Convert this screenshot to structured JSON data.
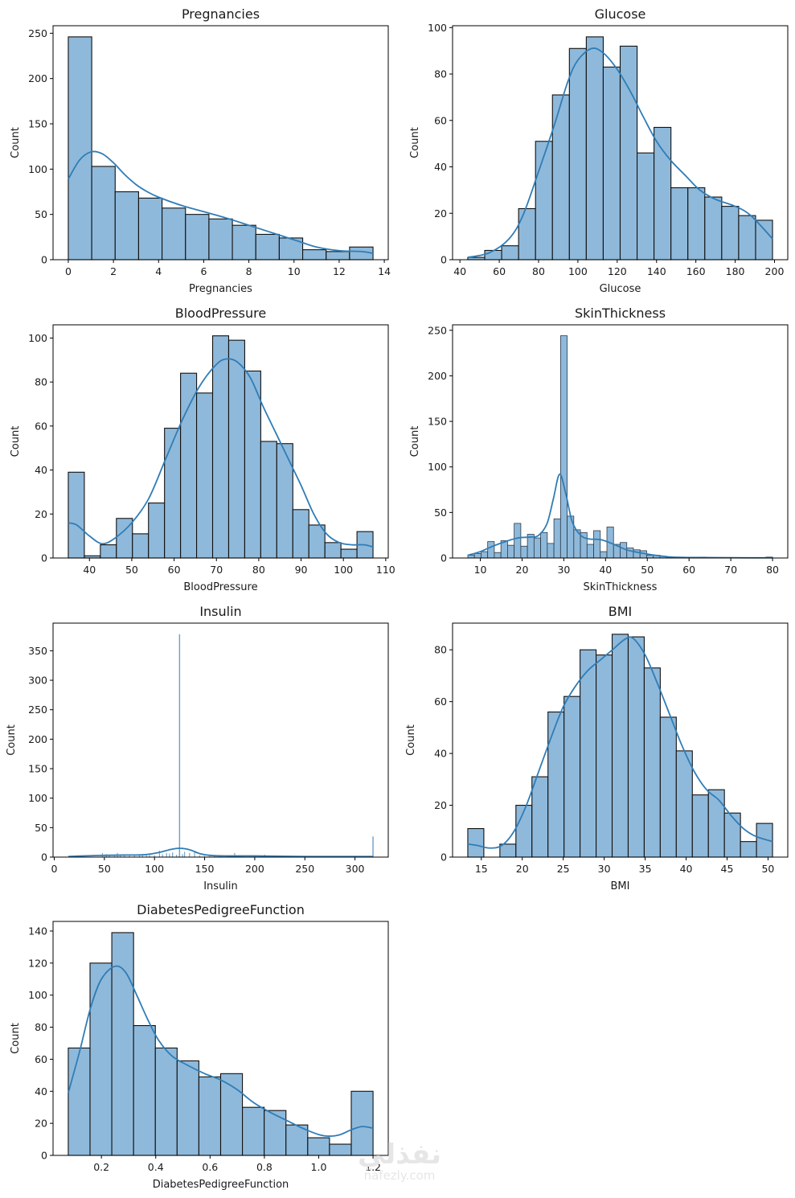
{
  "figure": {
    "watermark": {
      "arabic": "نفذلي",
      "latin": "nafezly.com"
    }
  },
  "chart_data": [
    {
      "type": "bar",
      "title": "Pregnancies",
      "xlabel": "Pregnancies",
      "ylabel": "Count",
      "bin_edges_range": [
        0,
        13.5
      ],
      "values": [
        246,
        103,
        75,
        68,
        57,
        50,
        45,
        38,
        28,
        24,
        11,
        9,
        14
      ],
      "xticks": [
        0,
        2,
        4,
        6,
        8,
        10,
        12,
        14
      ],
      "yticks": [
        0,
        50,
        100,
        150,
        200,
        250
      ],
      "xlim": [
        -0.675,
        14.175
      ],
      "ylim": [
        0,
        258.3
      ],
      "kde": [
        [
          0,
          89
        ],
        [
          0.5,
          110
        ],
        [
          1,
          119
        ],
        [
          1.5,
          117
        ],
        [
          2,
          107
        ],
        [
          2.5,
          94
        ],
        [
          3,
          83
        ],
        [
          3.5,
          75
        ],
        [
          4,
          69
        ],
        [
          5,
          60
        ],
        [
          6,
          53
        ],
        [
          7,
          46
        ],
        [
          8,
          38
        ],
        [
          9,
          30
        ],
        [
          10,
          22
        ],
        [
          11,
          14
        ],
        [
          12,
          10
        ],
        [
          13,
          9
        ],
        [
          13.5,
          7
        ]
      ]
    },
    {
      "type": "bar",
      "title": "Glucose",
      "xlabel": "Glucose",
      "ylabel": "Count",
      "bin_edges_range": [
        44,
        199
      ],
      "values": [
        1,
        4,
        6,
        22,
        51,
        71,
        91,
        96,
        83,
        92,
        46,
        57,
        31,
        31,
        27,
        23,
        19,
        17
      ],
      "xticks": [
        40,
        60,
        80,
        100,
        120,
        140,
        160,
        180,
        200
      ],
      "yticks": [
        0,
        20,
        40,
        60,
        80,
        100
      ],
      "xlim": [
        36.25,
        206.75
      ],
      "ylim": [
        0,
        100.8
      ],
      "kde": [
        [
          44,
          1
        ],
        [
          55,
          3
        ],
        [
          65,
          9
        ],
        [
          72,
          19
        ],
        [
          80,
          38
        ],
        [
          88,
          58
        ],
        [
          95,
          77
        ],
        [
          100,
          86
        ],
        [
          107,
          91
        ],
        [
          113,
          89
        ],
        [
          120,
          82
        ],
        [
          127,
          72
        ],
        [
          133,
          62
        ],
        [
          140,
          51
        ],
        [
          147,
          43
        ],
        [
          155,
          36
        ],
        [
          162,
          30
        ],
        [
          170,
          26
        ],
        [
          180,
          23
        ],
        [
          188,
          19
        ],
        [
          199,
          9
        ]
      ]
    },
    {
      "type": "bar",
      "title": "BloodPressure",
      "xlabel": "BloodPressure",
      "ylabel": "Count",
      "bin_edges_range": [
        35,
        107
      ],
      "values": [
        39,
        1,
        6,
        18,
        11,
        25,
        59,
        84,
        75,
        101,
        99,
        85,
        53,
        52,
        22,
        15,
        7,
        4,
        12
      ],
      "xticks": [
        40,
        50,
        60,
        70,
        80,
        90,
        100,
        110
      ],
      "yticks": [
        0,
        20,
        40,
        60,
        80,
        100
      ],
      "xlim": [
        31.4,
        110.6
      ],
      "ylim": [
        0,
        106
      ],
      "kde": [
        [
          35,
          16
        ],
        [
          37,
          15
        ],
        [
          40,
          10
        ],
        [
          43,
          6.5
        ],
        [
          46,
          9
        ],
        [
          50,
          16
        ],
        [
          54,
          27
        ],
        [
          58,
          45
        ],
        [
          62,
          63
        ],
        [
          66,
          78
        ],
        [
          70,
          88
        ],
        [
          72.5,
          90.5
        ],
        [
          75,
          89
        ],
        [
          78,
          82
        ],
        [
          81,
          69
        ],
        [
          84,
          57
        ],
        [
          87,
          45
        ],
        [
          90,
          33
        ],
        [
          93,
          20
        ],
        [
          96,
          11
        ],
        [
          99,
          7
        ],
        [
          102,
          6
        ],
        [
          105,
          6
        ],
        [
          107,
          5
        ]
      ]
    },
    {
      "type": "bar",
      "title": "SkinThickness",
      "xlabel": "SkinThickness",
      "ylabel": "Count",
      "bin_edges_range": [
        7,
        80
      ],
      "values": [
        3,
        5,
        7,
        18,
        6,
        19,
        14,
        38,
        13,
        26,
        22,
        28,
        16,
        43,
        244,
        46,
        31,
        28,
        15,
        30,
        7,
        34,
        15,
        17,
        11,
        9,
        8,
        3,
        3,
        2,
        1,
        1,
        1,
        0,
        0,
        1,
        0,
        0,
        0,
        0,
        0,
        0,
        0,
        0,
        0,
        1
      ],
      "xticks": [
        10,
        20,
        30,
        40,
        50,
        60,
        70,
        80
      ],
      "yticks": [
        0,
        50,
        100,
        150,
        200,
        250
      ],
      "xlim": [
        3.35,
        83.65
      ],
      "ylim": [
        0,
        256
      ],
      "kde": [
        [
          7,
          3
        ],
        [
          10,
          7
        ],
        [
          13,
          13
        ],
        [
          16,
          18
        ],
        [
          19,
          22
        ],
        [
          22,
          23
        ],
        [
          24,
          25
        ],
        [
          26,
          38
        ],
        [
          27.5,
          65
        ],
        [
          29,
          92
        ],
        [
          30.5,
          70
        ],
        [
          32,
          40
        ],
        [
          34,
          25
        ],
        [
          36,
          21
        ],
        [
          39,
          20
        ],
        [
          42,
          15
        ],
        [
          45,
          9
        ],
        [
          48,
          6
        ],
        [
          52,
          3
        ],
        [
          56,
          1
        ],
        [
          62,
          0.5
        ],
        [
          70,
          0.3
        ],
        [
          80,
          0.2
        ]
      ]
    },
    {
      "type": "bar",
      "title": "Insulin",
      "xlabel": "Insulin",
      "ylabel": "Count",
      "bin_edges_range": [
        14,
        318
      ],
      "spikes": [
        {
          "x": 125,
          "value": 378
        },
        {
          "x": 318,
          "value": 35
        }
      ],
      "minor_bars": [
        [
          48,
          7
        ],
        [
          52,
          5
        ],
        [
          55,
          4
        ],
        [
          60,
          3
        ],
        [
          63,
          7
        ],
        [
          66,
          4
        ],
        [
          70,
          3
        ],
        [
          75,
          4
        ],
        [
          80,
          3
        ],
        [
          85,
          3
        ],
        [
          88,
          4
        ],
        [
          92,
          5
        ],
        [
          95,
          6
        ],
        [
          100,
          3
        ],
        [
          105,
          11
        ],
        [
          108,
          5
        ],
        [
          112,
          7
        ],
        [
          115,
          6
        ],
        [
          118,
          8
        ],
        [
          122,
          4
        ],
        [
          128,
          5
        ],
        [
          130,
          9
        ],
        [
          135,
          7
        ],
        [
          140,
          8
        ],
        [
          145,
          3
        ],
        [
          150,
          2
        ],
        [
          155,
          2
        ],
        [
          160,
          2
        ],
        [
          165,
          2
        ],
        [
          175,
          2
        ],
        [
          180,
          7
        ],
        [
          185,
          3
        ],
        [
          190,
          3
        ],
        [
          195,
          2
        ],
        [
          200,
          2
        ],
        [
          210,
          4
        ],
        [
          215,
          2
        ],
        [
          230,
          1
        ],
        [
          250,
          1
        ],
        [
          280,
          1
        ]
      ],
      "xticks": [
        0,
        50,
        100,
        150,
        200,
        250,
        300
      ],
      "yticks": [
        0,
        50,
        100,
        150,
        200,
        250,
        300,
        350
      ],
      "xlim": [
        -1.2,
        333.2
      ],
      "ylim": [
        0,
        396.9
      ],
      "kde": [
        [
          14,
          1
        ],
        [
          30,
          2
        ],
        [
          50,
          3
        ],
        [
          70,
          3.5
        ],
        [
          90,
          4
        ],
        [
          105,
          8
        ],
        [
          115,
          12.5
        ],
        [
          125,
          15
        ],
        [
          135,
          12.5
        ],
        [
          145,
          6
        ],
        [
          155,
          3
        ],
        [
          170,
          2
        ],
        [
          200,
          2
        ],
        [
          250,
          1
        ],
        [
          300,
          1
        ],
        [
          318,
          1
        ]
      ]
    },
    {
      "type": "bar",
      "title": "BMI",
      "xlabel": "BMI",
      "ylabel": "Count",
      "bin_edges_range": [
        13.35,
        50.55
      ],
      "values": [
        11,
        0,
        5,
        20,
        31,
        56,
        62,
        80,
        78,
        86,
        85,
        73,
        54,
        41,
        24,
        26,
        17,
        6,
        13
      ],
      "xticks": [
        15,
        20,
        25,
        30,
        35,
        40,
        45,
        50
      ],
      "yticks": [
        0,
        20,
        40,
        60,
        80
      ],
      "xlim": [
        11.49,
        52.41
      ],
      "ylim": [
        0,
        90.3
      ],
      "kde": [
        [
          13.35,
          5
        ],
        [
          14.5,
          4.5
        ],
        [
          16,
          3.5
        ],
        [
          17.5,
          4.5
        ],
        [
          19,
          10
        ],
        [
          20.5,
          20
        ],
        [
          22,
          33
        ],
        [
          23.5,
          46
        ],
        [
          25,
          58
        ],
        [
          26.5,
          66
        ],
        [
          28,
          72
        ],
        [
          29.5,
          76
        ],
        [
          31,
          80
        ],
        [
          32.5,
          84
        ],
        [
          33.5,
          84.5
        ],
        [
          35,
          78
        ],
        [
          36.5,
          67
        ],
        [
          38,
          55
        ],
        [
          39.5,
          43
        ],
        [
          41,
          33
        ],
        [
          42.5,
          26
        ],
        [
          44,
          22
        ],
        [
          45.5,
          16
        ],
        [
          47,
          11
        ],
        [
          48.5,
          8
        ],
        [
          50.55,
          6
        ]
      ]
    },
    {
      "type": "bar",
      "title": "DiabetesPedigreeFunction",
      "xlabel": "DiabetesPedigreeFunction",
      "ylabel": "Count",
      "bin_edges_range": [
        0.078,
        1.2
      ],
      "values": [
        67,
        120,
        139,
        81,
        67,
        59,
        49,
        51,
        30,
        28,
        19,
        11,
        7,
        40
      ],
      "xticks": [
        "0.2",
        "0.4",
        "0.6",
        "0.8",
        "1.0",
        "1.2"
      ],
      "yticks": [
        0,
        20,
        40,
        60,
        80,
        100,
        120,
        140
      ],
      "xlim": [
        0.022,
        1.256
      ],
      "ylim": [
        0,
        146
      ],
      "kde": [
        [
          0.078,
          39
        ],
        [
          0.12,
          65
        ],
        [
          0.16,
          92
        ],
        [
          0.2,
          110
        ],
        [
          0.25,
          118
        ],
        [
          0.29,
          114
        ],
        [
          0.33,
          100
        ],
        [
          0.37,
          85
        ],
        [
          0.41,
          72
        ],
        [
          0.46,
          62
        ],
        [
          0.52,
          56
        ],
        [
          0.58,
          51
        ],
        [
          0.64,
          47
        ],
        [
          0.7,
          41
        ],
        [
          0.76,
          33
        ],
        [
          0.82,
          27
        ],
        [
          0.88,
          22
        ],
        [
          0.94,
          17
        ],
        [
          1.0,
          13
        ],
        [
          1.04,
          12
        ],
        [
          1.08,
          13
        ],
        [
          1.12,
          16
        ],
        [
          1.16,
          18
        ],
        [
          1.2,
          17
        ]
      ]
    }
  ]
}
